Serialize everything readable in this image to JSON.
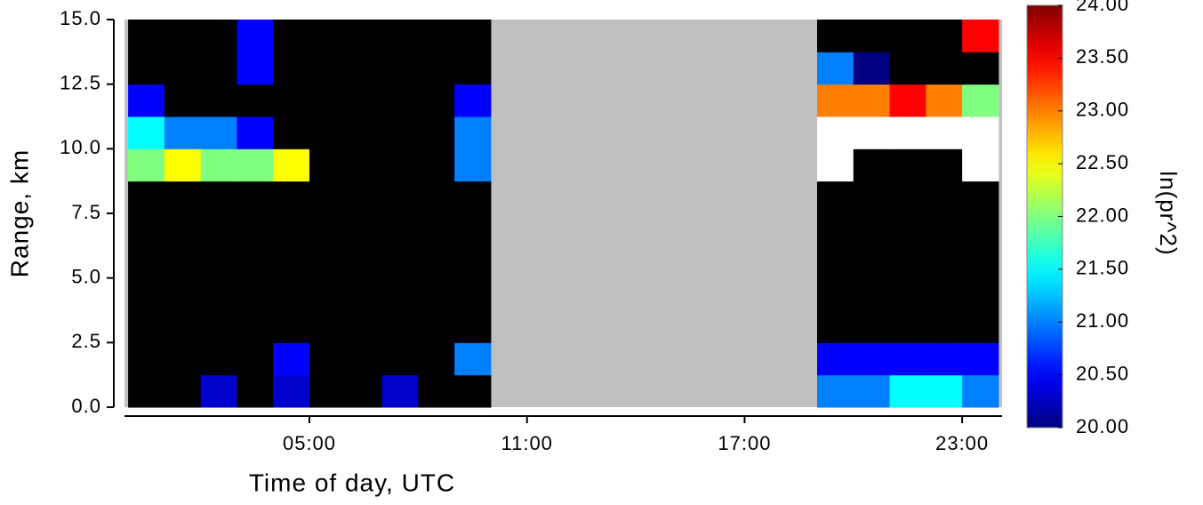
{
  "chart_data": {
    "type": "heatmap",
    "xlabel": "Time of day, UTC",
    "ylabel": "Range, km",
    "x": [
      0.5,
      1.5,
      2.5,
      3.5,
      4.5,
      5.5,
      6.5,
      7.5,
      8.5,
      9.5,
      10.5,
      11.5,
      12.5,
      13.5,
      14.5,
      15.5,
      16.5,
      17.5,
      18.5,
      19.5,
      20.5,
      21.5,
      22.5,
      23.5
    ],
    "y": [
      0.625,
      1.875,
      3.125,
      4.375,
      5.625,
      6.875,
      8.125,
      9.375,
      10.625,
      11.875,
      13.125,
      14.375
    ],
    "z": [
      [
        19.5,
        19.5,
        20.3,
        19.5,
        20.3,
        19.5,
        19.5,
        20.3,
        19.5,
        19.5,
        null,
        null,
        null,
        null,
        null,
        null,
        null,
        null,
        null,
        21,
        21,
        21.5,
        21.5,
        21
      ],
      [
        19,
        19,
        19,
        19,
        20.5,
        19,
        19,
        19,
        19,
        21,
        null,
        null,
        null,
        null,
        null,
        null,
        null,
        null,
        null,
        20.5,
        20.5,
        20.5,
        20.5,
        20.5
      ],
      [
        19,
        19,
        19,
        19,
        19,
        19,
        19,
        19,
        19,
        19,
        null,
        null,
        null,
        null,
        null,
        null,
        null,
        null,
        null,
        19,
        19,
        19,
        19,
        19
      ],
      [
        19,
        19,
        19,
        19,
        19,
        19,
        19,
        19,
        19,
        19,
        null,
        null,
        null,
        null,
        null,
        null,
        null,
        null,
        null,
        19,
        19,
        19,
        19,
        19
      ],
      [
        19,
        19,
        19,
        19,
        19,
        19,
        19,
        19,
        19,
        19,
        null,
        null,
        null,
        null,
        null,
        null,
        null,
        null,
        null,
        19,
        19,
        19,
        19,
        19
      ],
      [
        19,
        19,
        19,
        19,
        19,
        19,
        19,
        19,
        19,
        19,
        null,
        null,
        null,
        null,
        null,
        null,
        null,
        null,
        null,
        19,
        19,
        19,
        19,
        19
      ],
      [
        19,
        19,
        19,
        19,
        19,
        19,
        19,
        19,
        19,
        19,
        null,
        null,
        null,
        null,
        null,
        null,
        null,
        null,
        null,
        19,
        19,
        19,
        19,
        19
      ],
      [
        22,
        22.5,
        22,
        22,
        22.5,
        19,
        19,
        19,
        19,
        21,
        null,
        null,
        null,
        null,
        null,
        null,
        null,
        null,
        null,
        24.5,
        19.5,
        19.5,
        19.5,
        24.5
      ],
      [
        21.5,
        21,
        21,
        20.5,
        19,
        19,
        19,
        19,
        19,
        21,
        null,
        null,
        null,
        null,
        null,
        null,
        null,
        null,
        null,
        24.5,
        24.5,
        24.5,
        24.5,
        24.5
      ],
      [
        20.5,
        19,
        19,
        19,
        19,
        19,
        19,
        19,
        19,
        20.5,
        null,
        null,
        null,
        null,
        null,
        null,
        null,
        null,
        null,
        23,
        23,
        23.5,
        23,
        22
      ],
      [
        19,
        19,
        19,
        20.5,
        19,
        19,
        19,
        19,
        19,
        19,
        null,
        null,
        null,
        null,
        null,
        null,
        null,
        null,
        null,
        21,
        20,
        19,
        19,
        19
      ],
      [
        19,
        19,
        19,
        20.5,
        19,
        19,
        19,
        19,
        19,
        19,
        null,
        null,
        null,
        null,
        null,
        null,
        null,
        null,
        null,
        19,
        19,
        19,
        19,
        23.5
      ]
    ],
    "xlim": [
      -0.1,
      24.1
    ],
    "ylim": [
      0,
      15
    ],
    "xticks": [
      {
        "value": 5,
        "label": "05:00"
      },
      {
        "value": 11,
        "label": "11:00"
      },
      {
        "value": 17,
        "label": "17:00"
      },
      {
        "value": 23,
        "label": "23:00"
      }
    ],
    "yticks": [
      {
        "value": 0,
        "label": "0.0"
      },
      {
        "value": 2.5,
        "label": "2.5"
      },
      {
        "value": 5,
        "label": "5.0"
      },
      {
        "value": 7.5,
        "label": "7.5"
      },
      {
        "value": 10,
        "label": "10.0"
      },
      {
        "value": 12.5,
        "label": "12.5"
      },
      {
        "value": 15,
        "label": "15.0"
      }
    ],
    "missing_color": "#c0c0c0",
    "colorbar": {
      "label": "ln(pr^2)",
      "colormap": "jet",
      "lim": [
        20,
        24
      ],
      "under_color": "#000000",
      "over_color": "#ffffff",
      "ticks": [
        {
          "value": 20,
          "label": "20.00"
        },
        {
          "value": 20.5,
          "label": "20.50"
        },
        {
          "value": 21,
          "label": "21.00"
        },
        {
          "value": 21.5,
          "label": "21.50"
        },
        {
          "value": 22,
          "label": "22.00"
        },
        {
          "value": 22.5,
          "label": "22.50"
        },
        {
          "value": 23,
          "label": "23.00"
        },
        {
          "value": 23.5,
          "label": "23.50"
        },
        {
          "value": 24,
          "label": "24.00"
        }
      ]
    }
  }
}
